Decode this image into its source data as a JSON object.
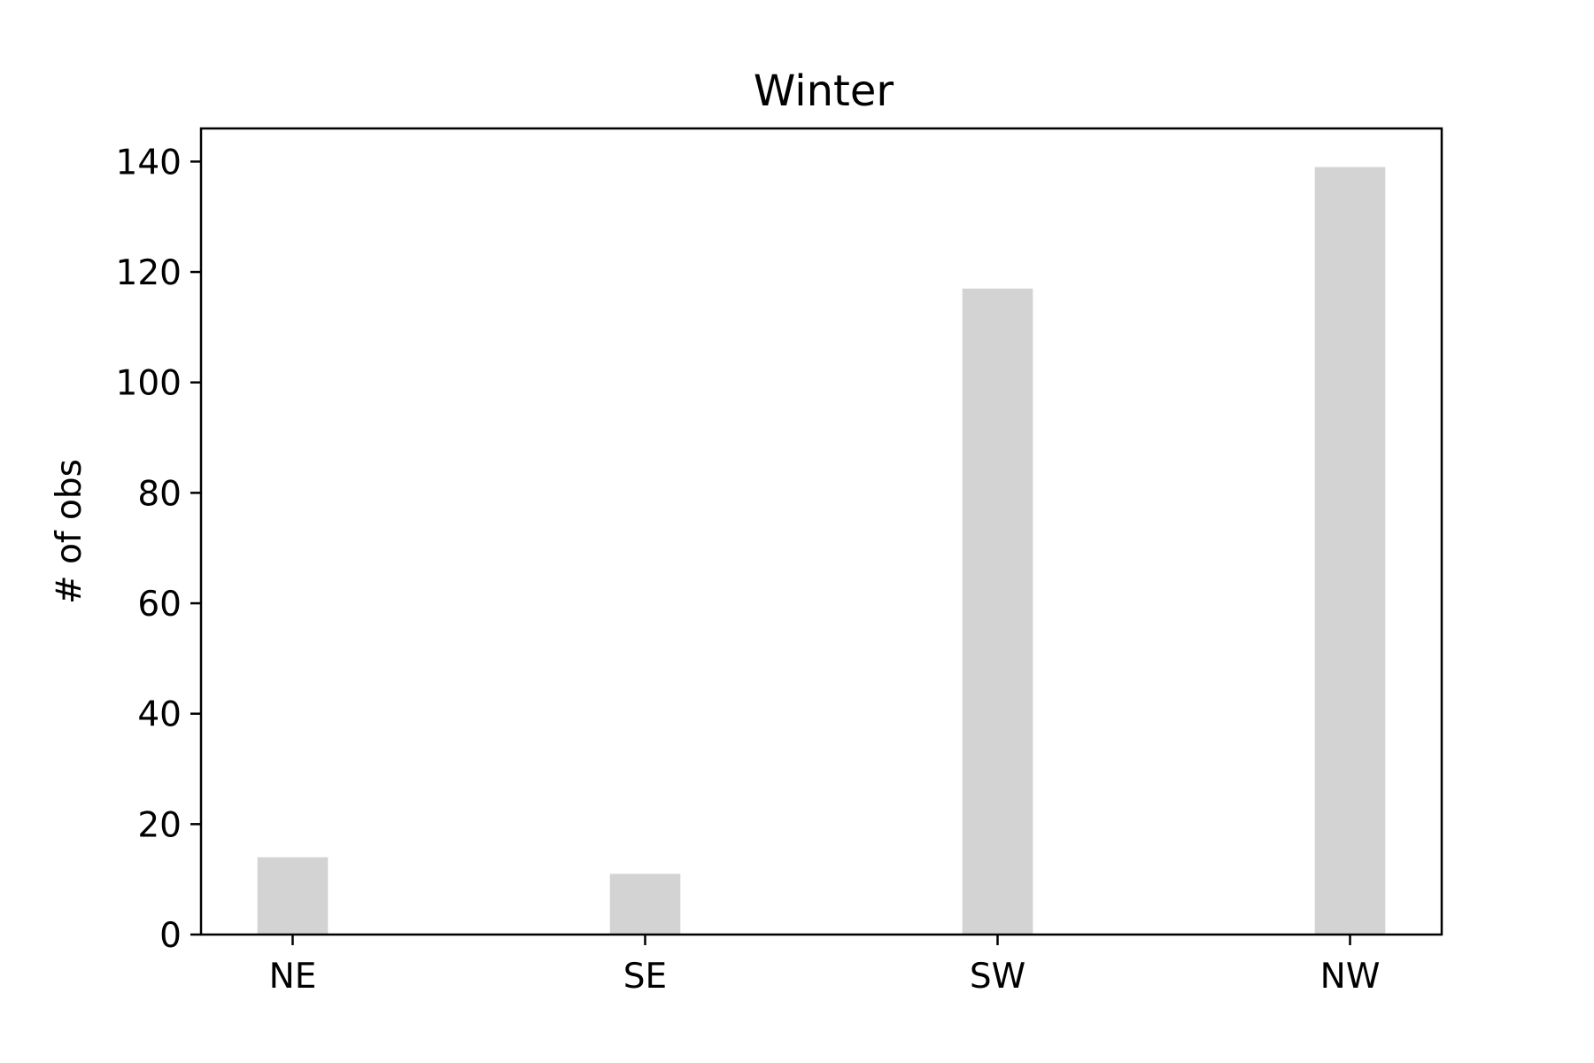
{
  "chart_data": {
    "type": "bar",
    "title": "Winter",
    "xlabel": "",
    "ylabel": "# of obs",
    "categories": [
      "NE",
      "SE",
      "SW",
      "NW"
    ],
    "values": [
      14,
      11,
      117,
      139
    ],
    "ylim": [
      0,
      146
    ],
    "yticks": [
      0,
      20,
      40,
      60,
      80,
      100,
      120,
      140
    ],
    "grid": false,
    "legend": "none",
    "colors": {
      "bar": "#d3d3d3",
      "axes": "#000000",
      "background": "#ffffff"
    }
  }
}
